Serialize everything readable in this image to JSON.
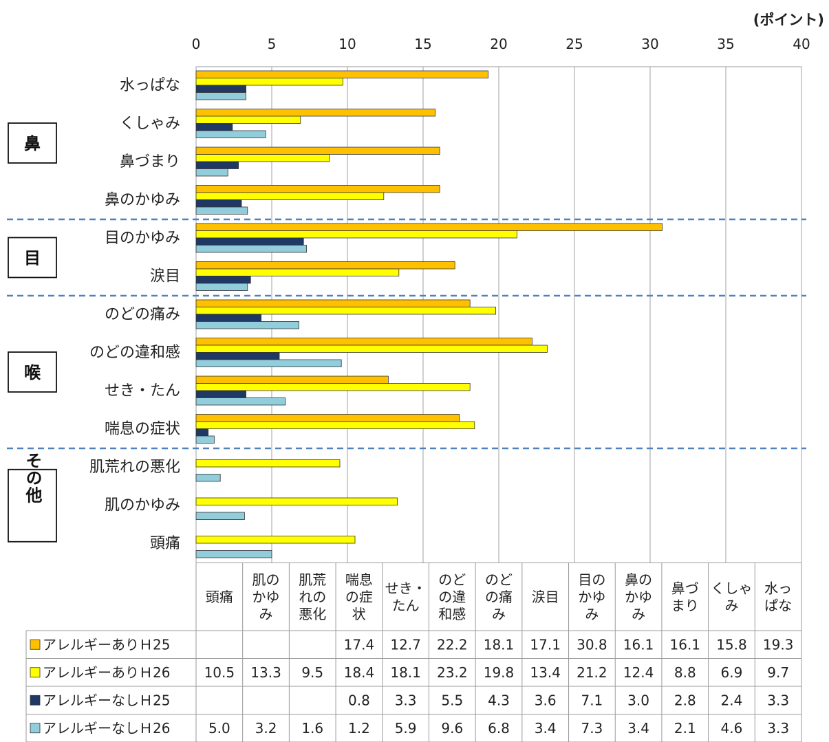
{
  "chart_data": {
    "type": "bar",
    "unit": "(ポイント)",
    "xlim": [
      0,
      40
    ],
    "xticks": [
      "0",
      "5",
      "10",
      "15",
      "20",
      "25",
      "30",
      "35",
      "40"
    ],
    "grid": true,
    "groups": [
      {
        "label": "鼻",
        "categories": [
          "水っぱな",
          "くしゃみ",
          "鼻づまり",
          "鼻のかゆみ"
        ]
      },
      {
        "label": "目",
        "categories": [
          "目のかゆみ",
          "涙目"
        ]
      },
      {
        "label": "喉",
        "categories": [
          "のどの痛み",
          "のどの違和感",
          "せき・たん",
          "喘息の症状"
        ]
      },
      {
        "label": "その他",
        "categories": [
          "肌荒れの悪化",
          "肌のかゆみ",
          "頭痛"
        ]
      }
    ],
    "categories": [
      "水っぱな",
      "くしゃみ",
      "鼻づまり",
      "鼻のかゆみ",
      "目のかゆみ",
      "涙目",
      "のどの痛み",
      "のどの違和感",
      "せき・たん",
      "喘息の症状",
      "肌荒れの悪化",
      "肌のかゆみ",
      "頭痛"
    ],
    "series": [
      {
        "name": "アレルギーありＨ25",
        "color": "#FFC000",
        "values": [
          19.3,
          15.8,
          16.1,
          16.1,
          30.8,
          17.1,
          18.1,
          22.2,
          12.7,
          17.4,
          null,
          null,
          null
        ]
      },
      {
        "name": "アレルギーありＨ26",
        "color": "#FFFF00",
        "values": [
          9.7,
          6.9,
          8.8,
          12.4,
          21.2,
          13.4,
          19.8,
          23.2,
          18.1,
          18.4,
          9.5,
          13.3,
          10.5
        ]
      },
      {
        "name": "アレルギーなしＨ25",
        "color": "#1F3864",
        "values": [
          3.3,
          2.4,
          2.8,
          3.0,
          7.1,
          3.6,
          4.3,
          5.5,
          3.3,
          0.8,
          null,
          null,
          null
        ]
      },
      {
        "name": "アレルギーなしＨ26",
        "color": "#92CDDC",
        "values": [
          3.3,
          4.6,
          2.1,
          3.4,
          7.3,
          3.4,
          6.8,
          9.6,
          5.9,
          1.2,
          1.6,
          3.2,
          5.0
        ]
      }
    ],
    "table": {
      "column_headers": [
        [
          "頭痛"
        ],
        [
          "肌の",
          "かゆ",
          "み"
        ],
        [
          "肌荒",
          "れの",
          "悪化"
        ],
        [
          "喘息",
          "の症",
          "状"
        ],
        [
          "せき・",
          "たん"
        ],
        [
          "のど",
          "の違",
          "和感"
        ],
        [
          "のど",
          "の痛",
          "み"
        ],
        [
          "涙目"
        ],
        [
          "目の",
          "かゆ",
          "み"
        ],
        [
          "鼻の",
          "かゆ",
          "み"
        ],
        [
          "鼻づ",
          "まり"
        ],
        [
          "くしゃ",
          "み"
        ],
        [
          "水っ",
          "ぱな"
        ]
      ],
      "rows": [
        [
          "",
          "",
          "",
          "17.4",
          "12.7",
          "22.2",
          "18.1",
          "17.1",
          "30.8",
          "16.1",
          "16.1",
          "15.8",
          "19.3"
        ],
        [
          "10.5",
          "13.3",
          "9.5",
          "18.4",
          "18.1",
          "23.2",
          "19.8",
          "13.4",
          "21.2",
          "12.4",
          "8.8",
          "6.9",
          "9.7"
        ],
        [
          "",
          "",
          "",
          "0.8",
          "3.3",
          "5.5",
          "4.3",
          "3.6",
          "7.1",
          "3.0",
          "2.8",
          "2.4",
          "3.3"
        ],
        [
          "5.0",
          "3.2",
          "1.6",
          "1.2",
          "5.9",
          "9.6",
          "6.8",
          "3.4",
          "7.3",
          "3.4",
          "2.1",
          "4.6",
          "3.3"
        ]
      ]
    }
  }
}
